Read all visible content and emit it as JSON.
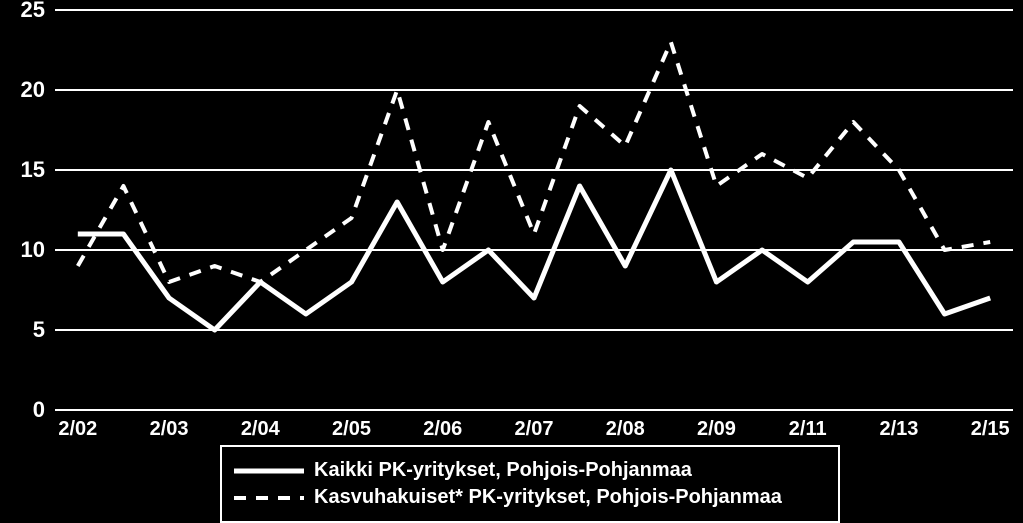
{
  "chart": {
    "type": "line",
    "background_color": "#000000",
    "grid_color": "#ffffff",
    "text_color": "#ffffff",
    "ylim": [
      0,
      25
    ],
    "ytick_step": 5,
    "yticks": [
      0,
      5,
      10,
      15,
      20,
      25
    ],
    "tick_fontsize": 22,
    "xticks": [
      "2/02",
      "2/03",
      "2/04",
      "2/05",
      "2/06",
      "2/07",
      "2/08",
      "2/09",
      "2/11",
      "2/13",
      "2/15"
    ],
    "xtick_positions": [
      0,
      2,
      4,
      6,
      8,
      10,
      12,
      14,
      16,
      18,
      20
    ],
    "n_points": 21,
    "series": [
      {
        "name": "kaikki",
        "label": "Kaikki PK-yritykset, Pohjois-Pohjanmaa",
        "style": "solid",
        "color": "#ffffff",
        "line_width": 5,
        "values": [
          11,
          11,
          7,
          5,
          8,
          6,
          8,
          13,
          8,
          10,
          7,
          14,
          9,
          15,
          8,
          10,
          8,
          10.5,
          10.5,
          6,
          7
        ]
      },
      {
        "name": "kasvuhakuiset",
        "label": "Kasvuhakuiset* PK-yritykset, Pohjois-Pohjanmaa",
        "style": "dashed",
        "color": "#ffffff",
        "line_width": 4,
        "dash": "12,10",
        "values": [
          9,
          14,
          8,
          9,
          8,
          10,
          12,
          20,
          10,
          18,
          11,
          19,
          16.5,
          23,
          14,
          16,
          14.5,
          18,
          15,
          10,
          10.5
        ]
      }
    ],
    "legend": {
      "border_color": "#ffffff",
      "background_color": "#000000",
      "fontsize": 20
    }
  }
}
